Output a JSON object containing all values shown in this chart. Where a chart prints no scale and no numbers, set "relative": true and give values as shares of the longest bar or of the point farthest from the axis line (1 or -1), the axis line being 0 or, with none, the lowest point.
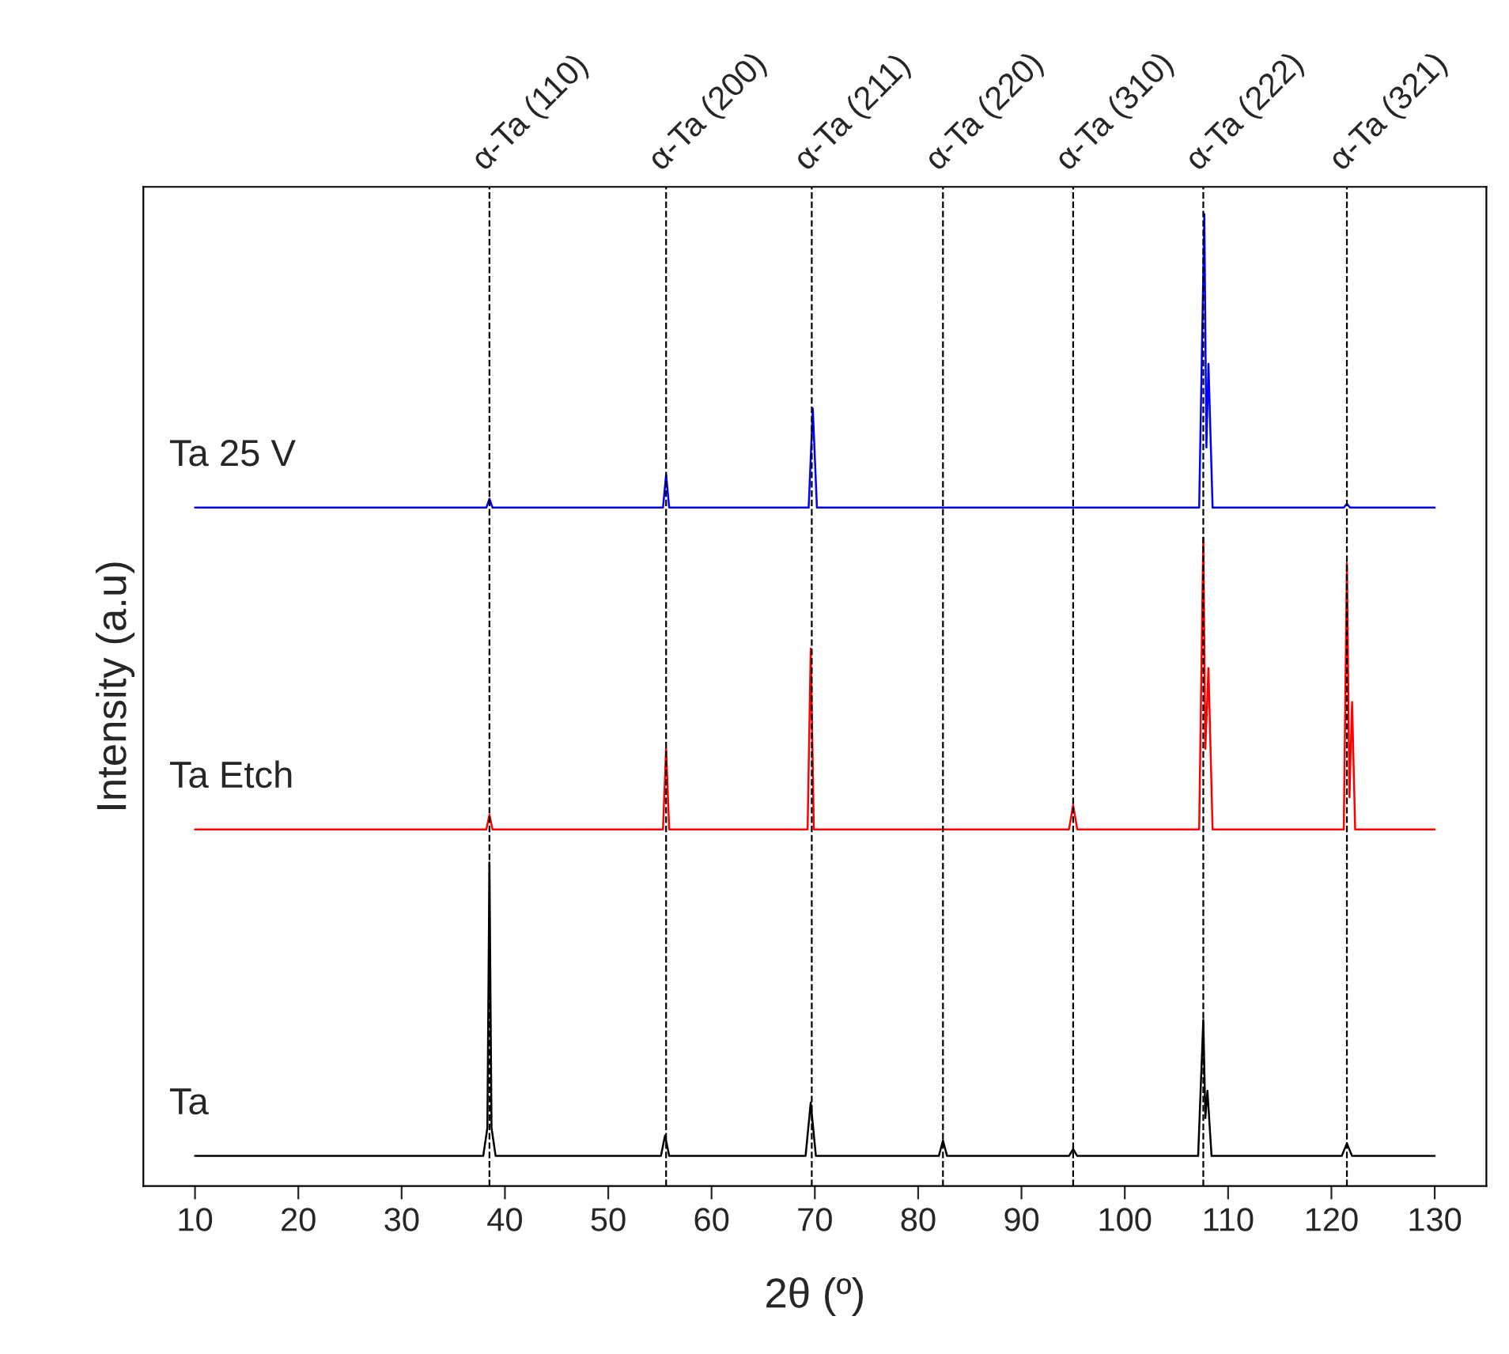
{
  "chart_data": {
    "type": "line",
    "relative": true,
    "xlabel": "2θ (º)",
    "ylabel": "Intensity (a.u)",
    "xlim": [
      5,
      135
    ],
    "xticks": [
      10,
      20,
      30,
      40,
      50,
      60,
      70,
      80,
      90,
      100,
      110,
      120,
      130
    ],
    "tick_labels": "x",
    "grid": false,
    "legend": false,
    "marker": "none",
    "line_style": "solid",
    "series": [
      {
        "name": "Ta",
        "color": "#000000",
        "x": [
          10,
          37.9,
          38.3,
          38.5,
          38.7,
          39.1,
          55.1,
          55.5,
          55.9,
          69.1,
          69.6,
          70.1,
          82.0,
          82.4,
          82.8,
          94.6,
          95.0,
          95.4,
          107.1,
          107.6,
          107.8,
          108.0,
          108.4,
          121.0,
          121.5,
          122.0,
          130
        ],
        "values": [
          0.031,
          0.031,
          0.06,
          0.333,
          0.06,
          0.031,
          0.031,
          0.052,
          0.031,
          0.031,
          0.086,
          0.031,
          0.031,
          0.047,
          0.031,
          0.031,
          0.038,
          0.031,
          0.031,
          0.171,
          0.07,
          0.098,
          0.031,
          0.031,
          0.044,
          0.031,
          0.031
        ]
      },
      {
        "name": "Ta Etch",
        "color": "#ff0000",
        "x": [
          10,
          38.2,
          38.5,
          38.8,
          55.3,
          55.6,
          55.9,
          69.3,
          69.6,
          69.9,
          94.6,
          95.0,
          95.4,
          107.2,
          107.6,
          107.8,
          108.1,
          108.5,
          121.2,
          121.5,
          121.75,
          122.0,
          122.3,
          130
        ],
        "values": [
          0.367,
          0.367,
          0.382,
          0.367,
          0.367,
          0.45,
          0.367,
          0.367,
          0.553,
          0.367,
          0.367,
          0.392,
          0.367,
          0.367,
          0.667,
          0.45,
          0.533,
          0.367,
          0.367,
          0.641,
          0.4,
          0.498,
          0.367,
          0.367
        ]
      },
      {
        "name": "Ta 25 V",
        "color": "#0000ff",
        "x": [
          10,
          38.2,
          38.5,
          38.8,
          55.3,
          55.6,
          55.9,
          69.4,
          69.8,
          70.2,
          107.2,
          107.7,
          107.9,
          108.1,
          108.5,
          121.2,
          121.5,
          121.8,
          130
        ],
        "values": [
          0.698,
          0.698,
          0.707,
          0.698,
          0.698,
          0.732,
          0.698,
          0.698,
          0.8,
          0.698,
          0.698,
          1.0,
          0.76,
          0.846,
          0.698,
          0.698,
          0.702,
          0.698,
          0.698
        ]
      }
    ],
    "ref_lines": [
      {
        "axis": "x",
        "value": 38.5,
        "label": "α-Ta (110)",
        "color": "#000000",
        "line_style": "dashed"
      },
      {
        "axis": "x",
        "value": 55.6,
        "label": "α-Ta (200)",
        "color": "#000000",
        "line_style": "dashed"
      },
      {
        "axis": "x",
        "value": 69.7,
        "label": "α-Ta (211)",
        "color": "#000000",
        "line_style": "dashed"
      },
      {
        "axis": "x",
        "value": 82.4,
        "label": "α-Ta (220)",
        "color": "#000000",
        "line_style": "dashed"
      },
      {
        "axis": "x",
        "value": 95.0,
        "label": "α-Ta (310)",
        "color": "#000000",
        "line_style": "dashed"
      },
      {
        "axis": "x",
        "value": 107.6,
        "label": "α-Ta (222)",
        "color": "#000000",
        "line_style": "dashed"
      },
      {
        "axis": "x",
        "value": 121.5,
        "label": "α-Ta (321)",
        "color": "#000000",
        "line_style": "dashed"
      }
    ]
  }
}
